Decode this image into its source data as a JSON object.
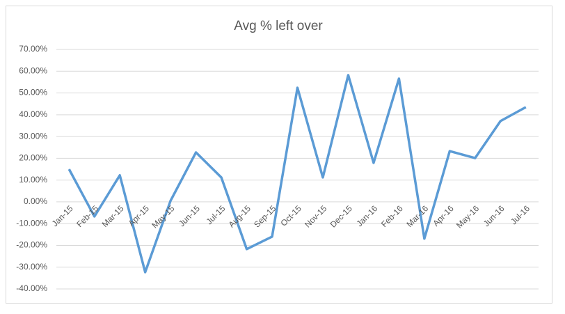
{
  "chart_data": {
    "type": "line",
    "title": "Avg % left over",
    "categories": [
      "Jan-15",
      "Feb-15",
      "Mar-15",
      "Apr-15",
      "May-15",
      "Jun-15",
      "Jul-15",
      "Aug-15",
      "Sep-15",
      "Oct-15",
      "Nov-15",
      "Dec-15",
      "Jan-16",
      "Feb-16",
      "Mar-16",
      "Apr-16",
      "May-16",
      "Jun-16",
      "Jul-16"
    ],
    "values": [
      15.0,
      -6.7,
      12.2,
      -32.3,
      0.5,
      22.7,
      11.2,
      -21.7,
      -16.0,
      52.4,
      11.2,
      58.2,
      17.9,
      56.6,
      -16.9,
      23.3,
      20.1,
      37.1,
      43.5
    ],
    "color": "#5b9bd5",
    "ylim": [
      -40,
      70
    ],
    "yticks": [
      {
        "value": -40,
        "label": "-40.00%"
      },
      {
        "value": -30,
        "label": "-30.00%"
      },
      {
        "value": -20,
        "label": "-20.00%"
      },
      {
        "value": -10,
        "label": "-10.00%"
      },
      {
        "value": 0,
        "label": "0.00%"
      },
      {
        "value": 10,
        "label": "10.00%"
      },
      {
        "value": 20,
        "label": "20.00%"
      },
      {
        "value": 30,
        "label": "30.00%"
      },
      {
        "value": 40,
        "label": "40.00%"
      },
      {
        "value": 50,
        "label": "50.00%"
      },
      {
        "value": 60,
        "label": "60.00%"
      },
      {
        "value": 70,
        "label": "70.00%"
      }
    ],
    "grid": true
  }
}
